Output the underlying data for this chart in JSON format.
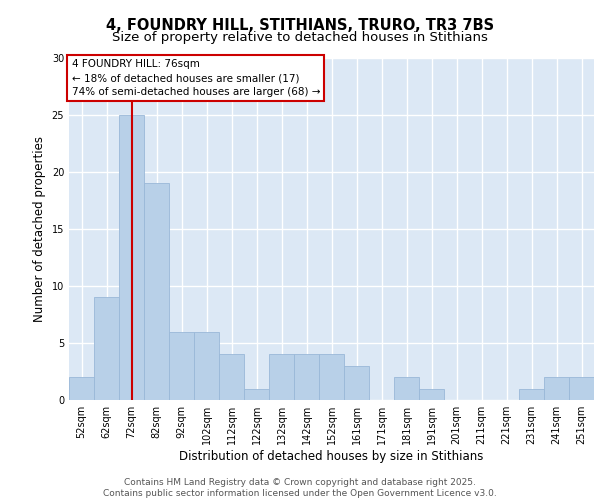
{
  "title_line1": "4, FOUNDRY HILL, STITHIANS, TRURO, TR3 7BS",
  "title_line2": "Size of property relative to detached houses in Stithians",
  "xlabel": "Distribution of detached houses by size in Stithians",
  "ylabel": "Number of detached properties",
  "bar_color": "#b8d0e8",
  "bar_edge_color": "#9ab8d8",
  "background_color": "#dce8f5",
  "grid_color": "#ffffff",
  "categories": [
    "52sqm",
    "62sqm",
    "72sqm",
    "82sqm",
    "92sqm",
    "102sqm",
    "112sqm",
    "122sqm",
    "132sqm",
    "142sqm",
    "152sqm",
    "161sqm",
    "171sqm",
    "181sqm",
    "191sqm",
    "201sqm",
    "211sqm",
    "221sqm",
    "231sqm",
    "241sqm",
    "251sqm"
  ],
  "values": [
    2,
    9,
    25,
    19,
    6,
    6,
    4,
    1,
    4,
    4,
    4,
    3,
    0,
    2,
    1,
    0,
    0,
    0,
    1,
    2,
    2
  ],
  "ylim": [
    0,
    30
  ],
  "yticks": [
    0,
    5,
    10,
    15,
    20,
    25,
    30
  ],
  "property_bin_index": 2,
  "annotation_title": "4 FOUNDRY HILL: 76sqm",
  "annotation_line2": "← 18% of detached houses are smaller (17)",
  "annotation_line3": "74% of semi-detached houses are larger (68) →",
  "vline_color": "#cc0000",
  "annotation_box_color": "#cc0000",
  "footer_line1": "Contains HM Land Registry data © Crown copyright and database right 2025.",
  "footer_line2": "Contains public sector information licensed under the Open Government Licence v3.0.",
  "title_fontsize": 10.5,
  "subtitle_fontsize": 9.5,
  "tick_fontsize": 7,
  "xlabel_fontsize": 8.5,
  "ylabel_fontsize": 8.5,
  "annotation_fontsize": 7.5,
  "footer_fontsize": 6.5
}
